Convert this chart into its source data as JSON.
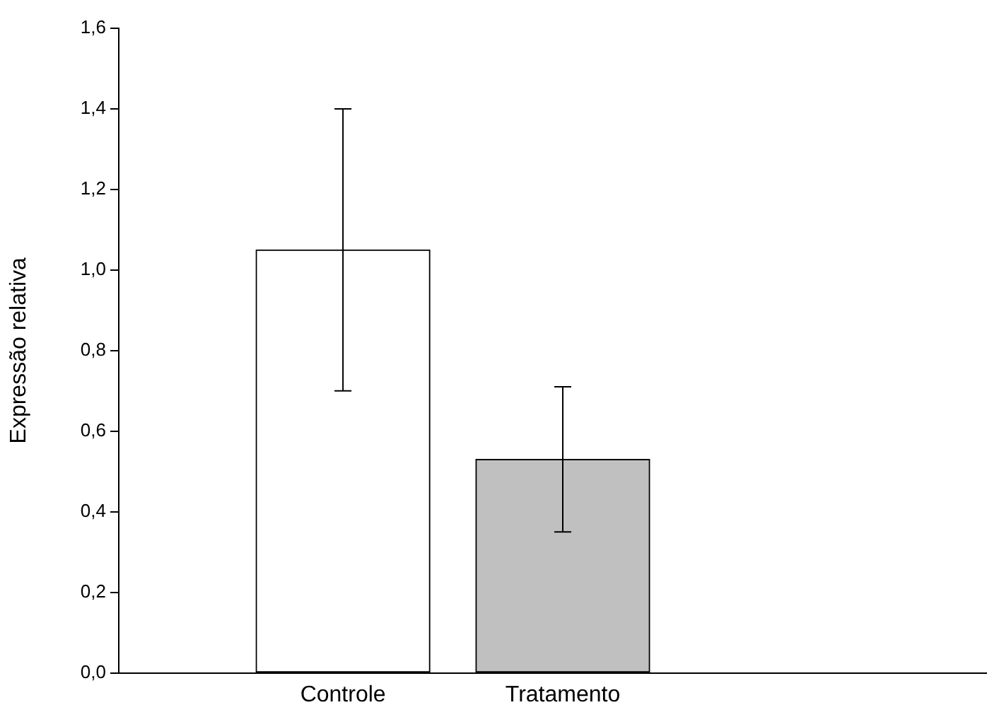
{
  "chart_data": {
    "type": "bar",
    "ylabel": "Expressão relativa",
    "categories": [
      "Controle",
      "Tratamento"
    ],
    "values": [
      1.05,
      0.53
    ],
    "colors": [
      "#ffffff",
      "#c0c0c0"
    ],
    "errors": [
      0.35,
      0.18
    ],
    "ylim": [
      0,
      1.6
    ],
    "yticks": [
      {
        "value": 0,
        "label": "0,0"
      },
      {
        "value": 0.2,
        "label": "0,2"
      },
      {
        "value": 0.4,
        "label": "0,4"
      },
      {
        "value": 0.6,
        "label": "0,6"
      },
      {
        "value": 0.8,
        "label": "0,8"
      },
      {
        "value": 1.0,
        "label": "1,0"
      },
      {
        "value": 1.2,
        "label": "1,2"
      },
      {
        "value": 1.4,
        "label": "1,4"
      },
      {
        "value": 1.6,
        "label": "1,6"
      }
    ],
    "grid": false,
    "legend": false
  }
}
